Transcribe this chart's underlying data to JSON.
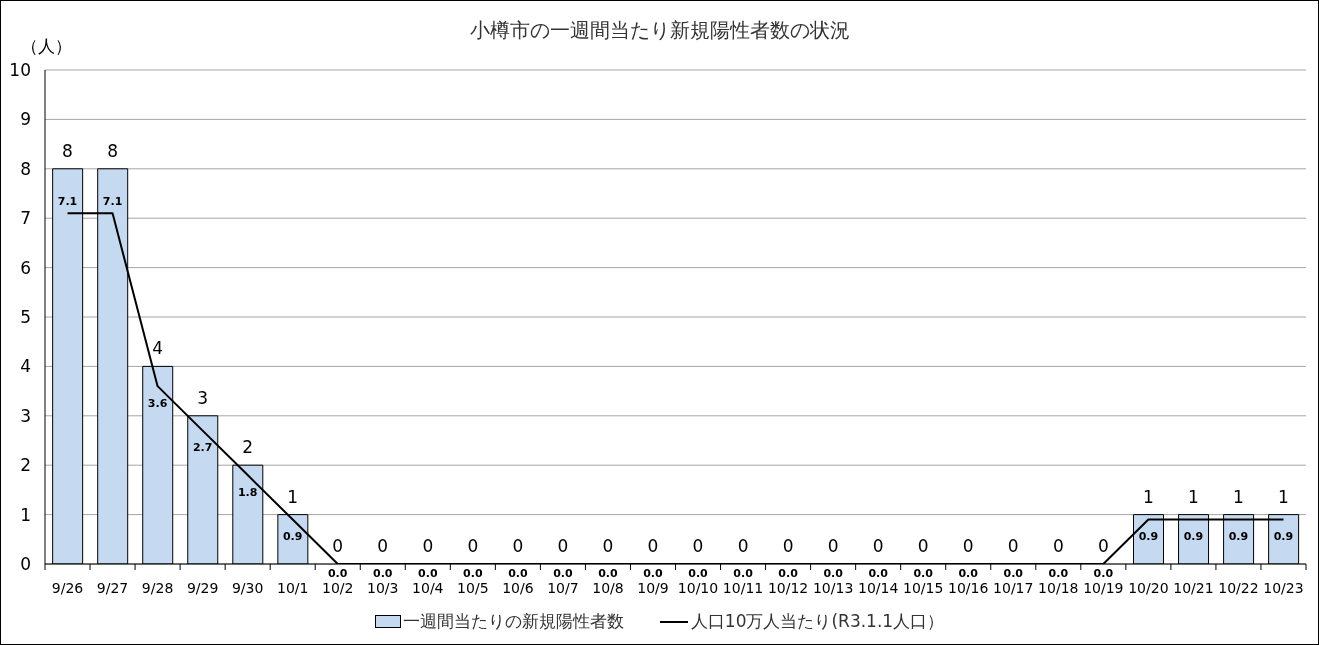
{
  "chart_data": {
    "type": "bar",
    "title": "小樽市の一週間当たり新規陽性者数の状況",
    "ylabel": "（人）",
    "categories": [
      "9/26",
      "9/27",
      "9/28",
      "9/29",
      "9/30",
      "10/1",
      "10/2",
      "10/3",
      "10/4",
      "10/5",
      "10/6",
      "10/7",
      "10/8",
      "10/9",
      "10/10",
      "10/11",
      "10/12",
      "10/13",
      "10/14",
      "10/15",
      "10/16",
      "10/17",
      "10/18",
      "10/19",
      "10/20",
      "10/21",
      "10/22",
      "10/23"
    ],
    "series": [
      {
        "name": "一週間当たりの新規陽性者数",
        "color": "#c5daf0",
        "values": [
          8,
          8,
          4,
          3,
          2,
          1,
          0,
          0,
          0,
          0,
          0,
          0,
          0,
          0,
          0,
          0,
          0,
          0,
          0,
          0,
          0,
          0,
          0,
          0,
          1,
          1,
          1,
          1
        ],
        "value_labels": [
          "8",
          "8",
          "4",
          "3",
          "2",
          "1",
          "0",
          "0",
          "0",
          "0",
          "0",
          "0",
          "0",
          "0",
          "0",
          "0",
          "0",
          "0",
          "0",
          "0",
          "0",
          "0",
          "0",
          "0",
          "1",
          "1",
          "1",
          "1"
        ]
      },
      {
        "name": "人口10万人当たり(R3.1.1人口）",
        "type": "line",
        "color": "#000000",
        "values": [
          7.1,
          7.1,
          3.6,
          2.7,
          1.8,
          0.9,
          0,
          0,
          0,
          0,
          0,
          0,
          0,
          0,
          0,
          0,
          0,
          0,
          0,
          0,
          0,
          0,
          0,
          0,
          0.9,
          0.9,
          0.9,
          0.9
        ],
        "value_labels": [
          "7.1",
          "7.1",
          "3.6",
          "2.7",
          "1.8",
          "0.9",
          "0.0",
          "0.0",
          "0.0",
          "0.0",
          "0.0",
          "0.0",
          "0.0",
          "0.0",
          "0.0",
          "0.0",
          "0.0",
          "0.0",
          "0.0",
          "0.0",
          "0.0",
          "0.0",
          "0.0",
          "0.0",
          "0.9",
          "0.9",
          "0.9",
          "0.9"
        ]
      }
    ],
    "ylim": [
      0,
      10
    ],
    "yticks": [
      0,
      1,
      2,
      3,
      4,
      5,
      6,
      7,
      8,
      9,
      10
    ],
    "grid": "y",
    "legend": "bottom"
  }
}
